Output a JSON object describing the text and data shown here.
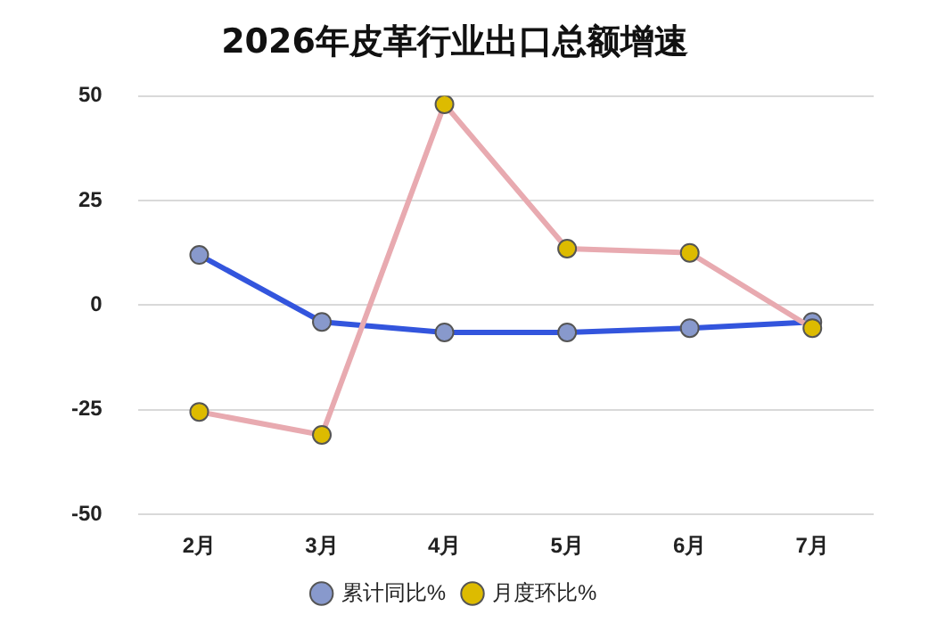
{
  "chart_data": {
    "type": "line",
    "title": "2026年皮革行业出口总额增速",
    "categories": [
      "2月",
      "3月",
      "4月",
      "5月",
      "6月",
      "7月"
    ],
    "series": [
      {
        "name": "累计同比%",
        "color": "#3355dd",
        "values": [
          12,
          -4,
          -6.5,
          -6.5,
          -5.5,
          -4
        ]
      },
      {
        "name": "月度环比%",
        "color": "#e8aab0",
        "values": [
          -25.5,
          -31,
          48,
          13.5,
          12.5,
          -5.5
        ]
      }
    ],
    "ylim": [
      -50,
      50
    ],
    "yticks": [
      -50,
      -25,
      0,
      25,
      50
    ],
    "grid": "y",
    "legend": "bottom",
    "marker": "circle",
    "line_style": "solid"
  }
}
